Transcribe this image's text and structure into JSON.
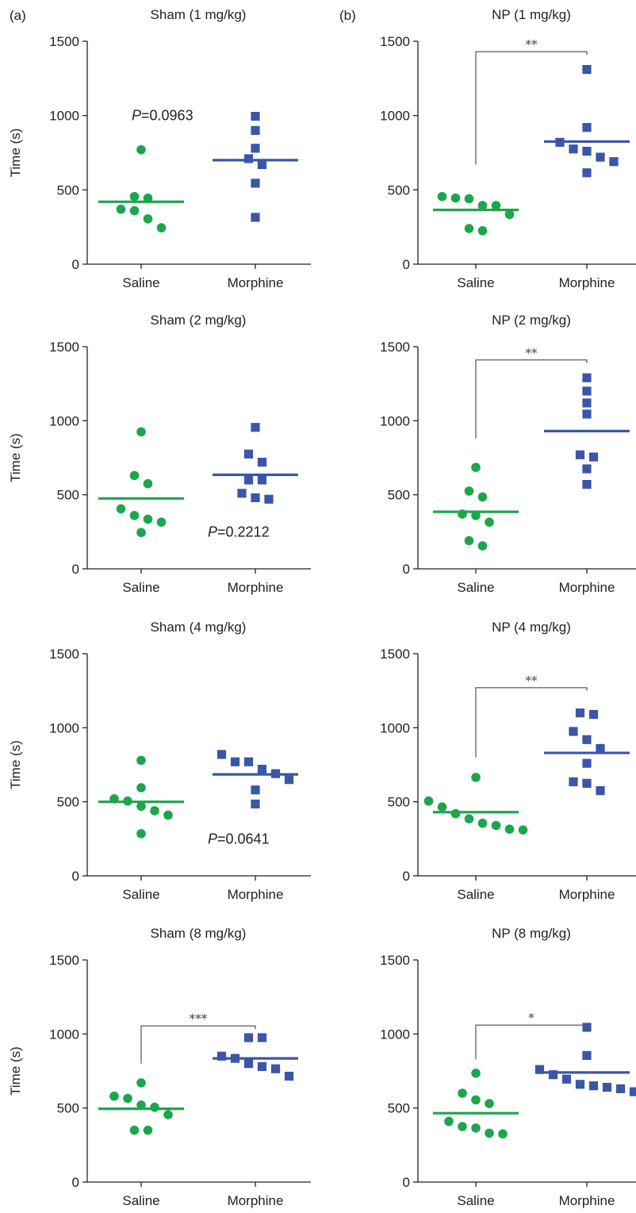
{
  "panel_labels": [
    "(a)",
    "(b)"
  ],
  "colors": {
    "saline": "#1ca64c",
    "morphine": "#3a56a8"
  },
  "chart_data": [
    {
      "type": "scatter",
      "column": 0,
      "row": 0,
      "title": "Sham (1 mg/kg)",
      "ylabel": "Time (s)",
      "ylim": [
        0,
        1500
      ],
      "yticks": [
        0,
        500,
        1000,
        1500
      ],
      "categories": [
        "Saline",
        "Morphine"
      ],
      "series": [
        {
          "category": "Saline",
          "marker": "circle",
          "mean": 420,
          "values": [
            770,
            455,
            445,
            370,
            360,
            305,
            245
          ]
        },
        {
          "category": "Morphine",
          "marker": "square",
          "mean": 700,
          "values": [
            995,
            900,
            780,
            710,
            670,
            545,
            315
          ]
        }
      ],
      "annotation": {
        "text": "P=0.0963",
        "italic": "P",
        "position": "upper-left"
      }
    },
    {
      "type": "scatter",
      "column": 1,
      "row": 0,
      "title": "NP (1 mg/kg)",
      "ylabel": "",
      "ylim": [
        0,
        1500
      ],
      "yticks": [
        0,
        500,
        1000,
        1500
      ],
      "categories": [
        "Saline",
        "Morphine"
      ],
      "series": [
        {
          "category": "Saline",
          "marker": "circle",
          "mean": 365,
          "values": [
            455,
            445,
            440,
            395,
            395,
            335,
            240,
            225
          ]
        },
        {
          "category": "Morphine",
          "marker": "square",
          "mean": 825,
          "values": [
            1310,
            920,
            820,
            775,
            760,
            720,
            690,
            615
          ]
        }
      ],
      "significance": {
        "text": "**",
        "bracket_top": 1430,
        "left_drop": 670
      }
    },
    {
      "type": "scatter",
      "column": 0,
      "row": 1,
      "title": "Sham (2 mg/kg)",
      "ylabel": "Time (s)",
      "ylim": [
        0,
        1500
      ],
      "yticks": [
        0,
        500,
        1000,
        1500
      ],
      "categories": [
        "Saline",
        "Morphine"
      ],
      "series": [
        {
          "category": "Saline",
          "marker": "circle",
          "mean": 475,
          "values": [
            925,
            630,
            575,
            405,
            360,
            335,
            315,
            245
          ]
        },
        {
          "category": "Morphine",
          "marker": "square",
          "mean": 635,
          "values": [
            955,
            775,
            720,
            600,
            600,
            510,
            480,
            470
          ]
        }
      ],
      "annotation": {
        "text": "P=0.2212",
        "italic": "P",
        "position": "lower-right"
      }
    },
    {
      "type": "scatter",
      "column": 1,
      "row": 1,
      "title": "NP (2 mg/kg)",
      "ylabel": "",
      "ylim": [
        0,
        1500
      ],
      "yticks": [
        0,
        500,
        1000,
        1500
      ],
      "categories": [
        "Saline",
        "Morphine"
      ],
      "series": [
        {
          "category": "Saline",
          "marker": "circle",
          "mean": 385,
          "values": [
            685,
            525,
            485,
            370,
            360,
            315,
            190,
            155
          ]
        },
        {
          "category": "Morphine",
          "marker": "square",
          "mean": 930,
          "values": [
            1290,
            1200,
            1120,
            1045,
            770,
            755,
            675,
            570
          ]
        }
      ],
      "significance": {
        "text": "**",
        "bracket_top": 1410,
        "left_drop": 880
      }
    },
    {
      "type": "scatter",
      "column": 0,
      "row": 2,
      "title": "Sham (4 mg/kg)",
      "ylabel": "Time (s)",
      "ylim": [
        0,
        1500
      ],
      "yticks": [
        0,
        500,
        1000,
        1500
      ],
      "categories": [
        "Saline",
        "Morphine"
      ],
      "series": [
        {
          "category": "Saline",
          "marker": "circle",
          "mean": 500,
          "values": [
            780,
            595,
            520,
            505,
            470,
            440,
            410,
            285
          ]
        },
        {
          "category": "Morphine",
          "marker": "square",
          "mean": 685,
          "values": [
            820,
            770,
            770,
            720,
            690,
            650,
            580,
            485
          ]
        }
      ],
      "annotation": {
        "text": "P=0.0641",
        "italic": "P",
        "position": "lower-right"
      }
    },
    {
      "type": "scatter",
      "column": 1,
      "row": 2,
      "title": "NP (4 mg/kg)",
      "ylabel": "",
      "ylim": [
        0,
        1500
      ],
      "yticks": [
        0,
        500,
        1000,
        1500
      ],
      "categories": [
        "Saline",
        "Morphine"
      ],
      "series": [
        {
          "category": "Saline",
          "marker": "circle",
          "mean": 430,
          "values": [
            665,
            505,
            465,
            420,
            385,
            355,
            340,
            310,
            315
          ]
        },
        {
          "category": "Morphine",
          "marker": "square",
          "mean": 830,
          "values": [
            1100,
            1090,
            975,
            920,
            860,
            760,
            635,
            625,
            575
          ]
        }
      ],
      "significance": {
        "text": "**",
        "bracket_top": 1270,
        "left_drop": 800
      }
    },
    {
      "type": "scatter",
      "column": 0,
      "row": 3,
      "title": "Sham (8 mg/kg)",
      "ylabel": "Time (s)",
      "ylim": [
        0,
        1500
      ],
      "yticks": [
        0,
        500,
        1000,
        1500
      ],
      "categories": [
        "Saline",
        "Morphine"
      ],
      "series": [
        {
          "category": "Saline",
          "marker": "circle",
          "mean": 495,
          "values": [
            670,
            580,
            565,
            520,
            505,
            455,
            350,
            350
          ]
        },
        {
          "category": "Morphine",
          "marker": "square",
          "mean": 835,
          "values": [
            975,
            975,
            850,
            835,
            800,
            780,
            765,
            715
          ]
        }
      ],
      "significance": {
        "text": "***",
        "bracket_top": 1055,
        "left_drop": 800
      }
    },
    {
      "type": "scatter",
      "column": 1,
      "row": 3,
      "title": "NP (8 mg/kg)",
      "ylabel": "",
      "ylim": [
        0,
        1500
      ],
      "yticks": [
        0,
        500,
        1000,
        1500
      ],
      "categories": [
        "Saline",
        "Morphine"
      ],
      "series": [
        {
          "category": "Saline",
          "marker": "circle",
          "mean": 465,
          "values": [
            735,
            600,
            555,
            530,
            410,
            375,
            365,
            330,
            325
          ]
        },
        {
          "category": "Morphine",
          "marker": "square",
          "mean": 740,
          "values": [
            1045,
            855,
            760,
            725,
            695,
            660,
            650,
            640,
            610,
            630
          ]
        }
      ],
      "significance": {
        "text": "*",
        "bracket_top": 1060,
        "left_drop": 830
      }
    }
  ]
}
